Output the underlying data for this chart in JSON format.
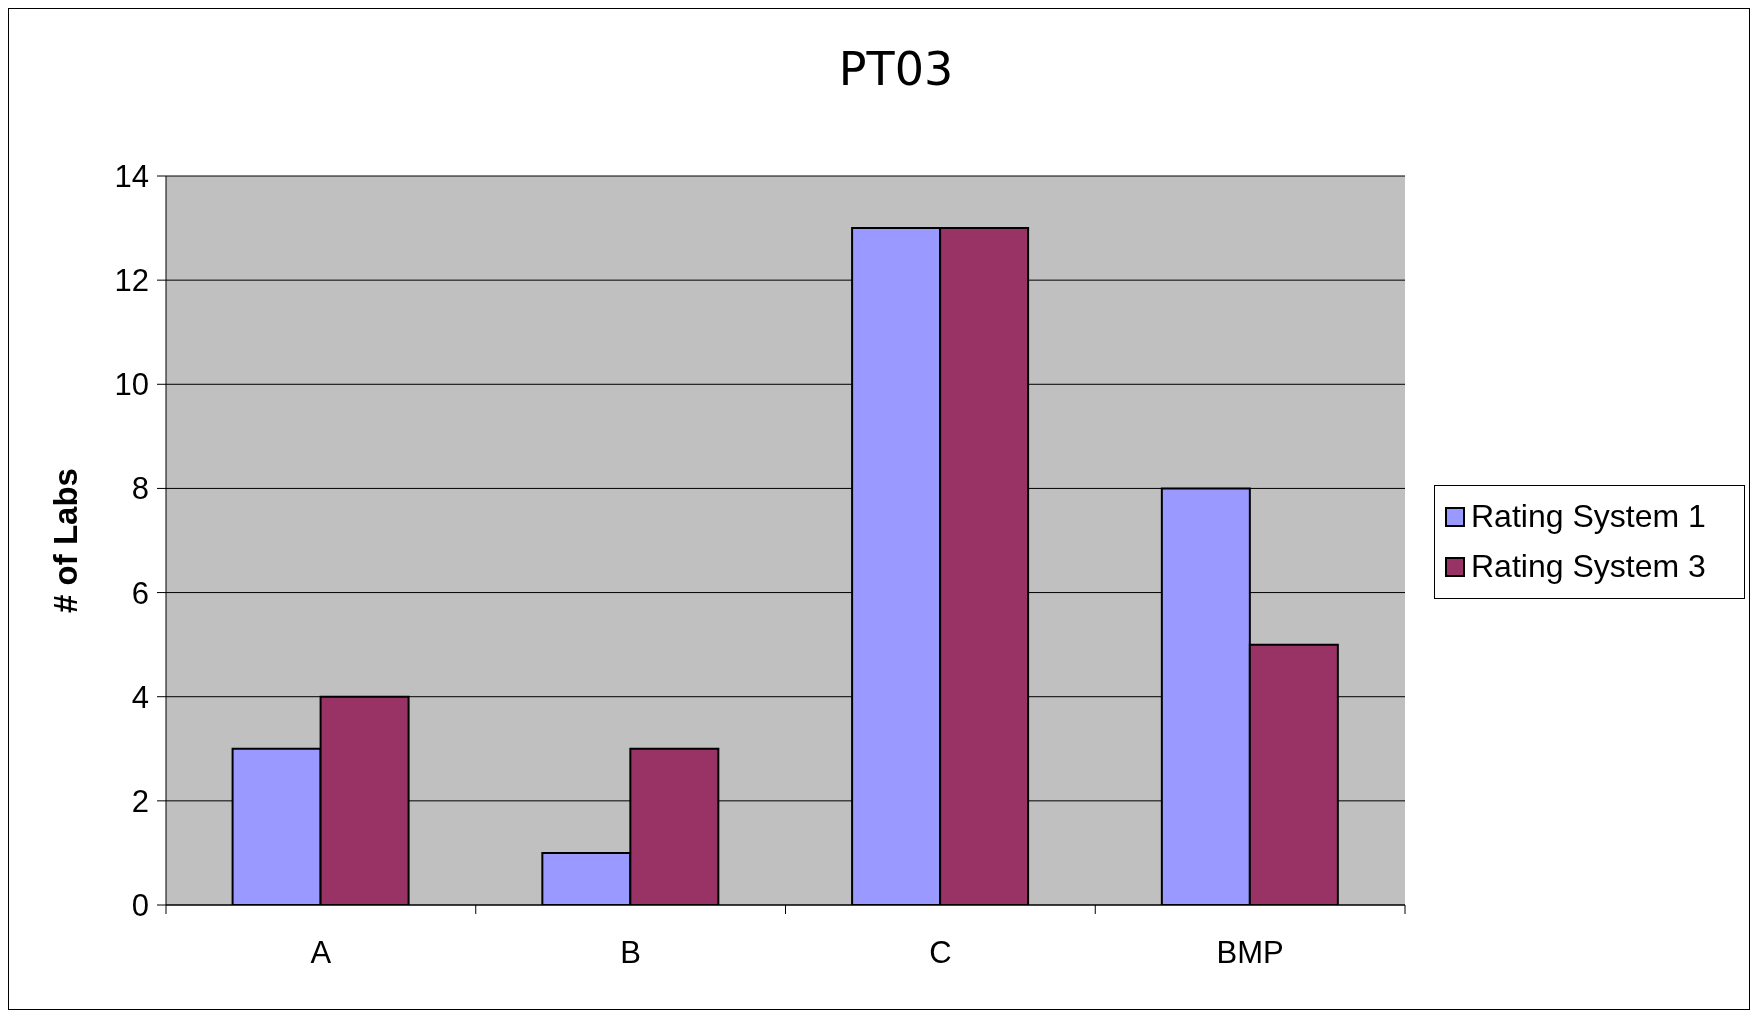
{
  "chart_data": {
    "type": "bar",
    "title": "PT03",
    "ylabel": "# of Labs",
    "categories": [
      "A",
      "B",
      "C",
      "BMP"
    ],
    "series": [
      {
        "name": "Rating System 1",
        "color": "#9999ff",
        "values": [
          3,
          1,
          13,
          8
        ]
      },
      {
        "name": "Rating System 3",
        "color": "#993366",
        "values": [
          4,
          3,
          13,
          5
        ]
      }
    ],
    "ylim": [
      0,
      14
    ],
    "yticks": [
      0,
      2,
      4,
      6,
      8,
      10,
      12,
      14
    ],
    "grid": "y",
    "legend": "right"
  }
}
